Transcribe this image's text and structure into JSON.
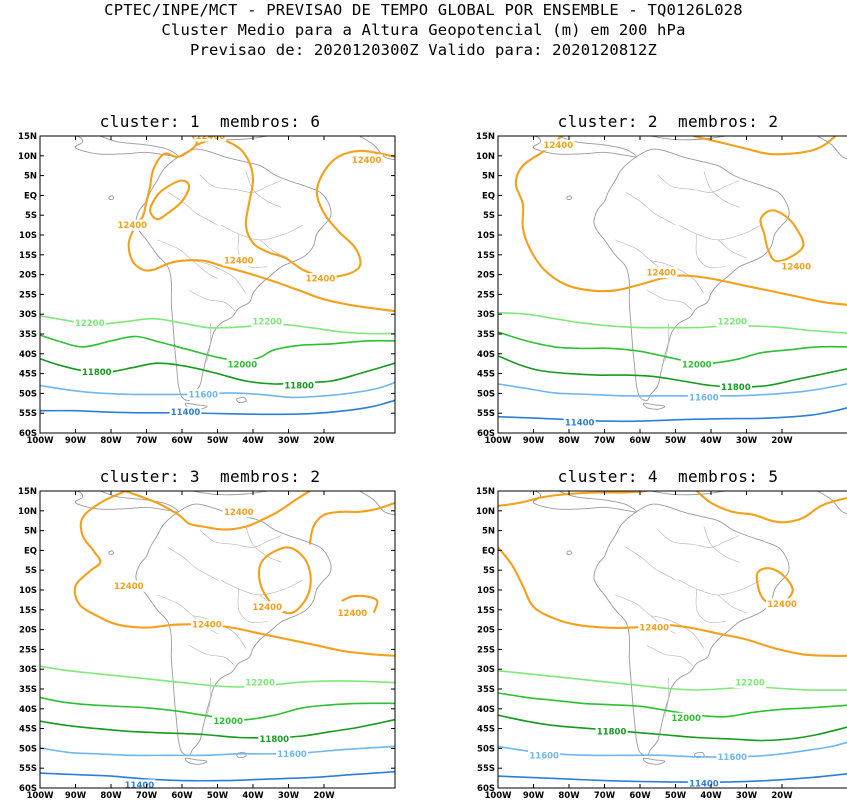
{
  "header": {
    "line1": "CPTEC/INPE/MCT - PREVISAO DE TEMPO GLOBAL POR ENSEMBLE - TQ0126L028",
    "line2": "Cluster Medio para a Altura Geopotencial (m) em 200 hPa",
    "line3": "Previsao de: 2020120300Z   Valido para: 2020120812Z"
  },
  "axes": {
    "lat_labels": [
      "15N",
      "10N",
      "5N",
      "EQ",
      "5S",
      "10S",
      "15S",
      "20S",
      "25S",
      "30S",
      "35S",
      "40S",
      "45S",
      "50S",
      "55S",
      "60S"
    ],
    "lon_labels": [
      "100W",
      "90W",
      "80W",
      "70W",
      "60W",
      "50W",
      "40W",
      "30W",
      "20W"
    ]
  },
  "contour_colors": {
    "12400": "#f5a01c",
    "12200": "#7ee87a",
    "12000": "#2ec032",
    "11800": "#149b1e",
    "11600": "#6fb7ef",
    "11400": "#2d7fd6"
  },
  "panels": [
    {
      "title": "cluster: 1  membros: 6",
      "labels": [
        "12400",
        "12400",
        "12400",
        "12400",
        "12400",
        "12200",
        "12200",
        "12000",
        "11800",
        "11800",
        "11600",
        "11400"
      ]
    },
    {
      "title": "cluster: 2  membros: 2",
      "labels": [
        "12400",
        "12400",
        "12400",
        "12200",
        "12000",
        "11800",
        "11600",
        "11400"
      ]
    },
    {
      "title": "cluster: 3  membros: 2",
      "labels": [
        "12400",
        "12400",
        "12400",
        "12400",
        "12400",
        "12200",
        "12000",
        "11800",
        "11600",
        "11400"
      ]
    },
    {
      "title": "cluster: 4  membros: 5",
      "labels": [
        "12400",
        "12400",
        "12200",
        "12000",
        "11800",
        "11600",
        "11600",
        "11400"
      ]
    }
  ]
}
